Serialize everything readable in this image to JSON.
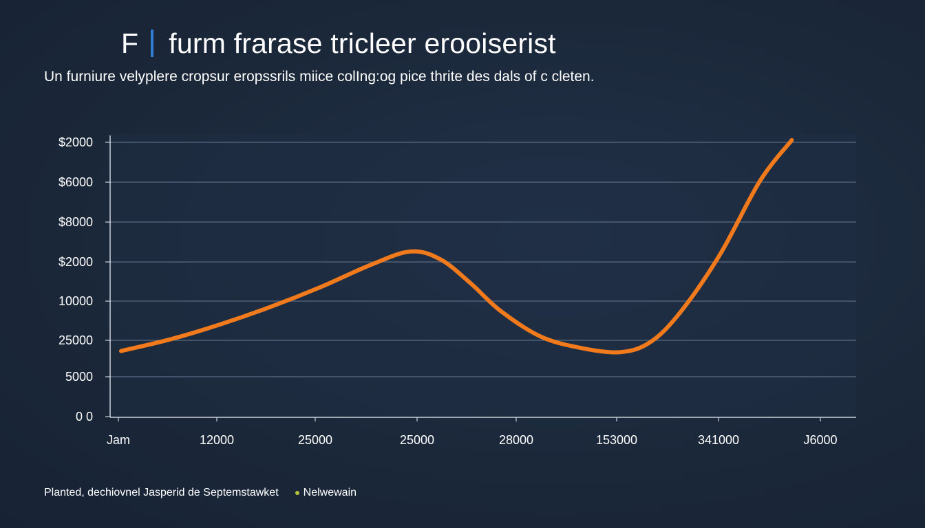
{
  "header": {
    "mark": "F",
    "title": "furm frarase tricleer erooiserist",
    "subtitle": "Un furniure velyplere cropsur eropssrils miice colIng:​og pice thrite des dals of c cleten."
  },
  "footer": {
    "note": "Planted, dechiovnel Jasperid de Septemstawket",
    "legend_label": "Nelwewain"
  },
  "colors": {
    "background": "#1b283a",
    "plot_background": "#1f2e44",
    "line": "#f07a1c",
    "grid": "#5a6b82",
    "accent_divider": "#2f7fd6",
    "legend_dot": "#b5c43a"
  },
  "chart_data": {
    "type": "line",
    "title": "furm frarase tricleer erooiserist",
    "xlabel": "",
    "ylabel": "",
    "x_tick_labels": [
      "Jam",
      "12000",
      "25000",
      "25000",
      "28000",
      "153000",
      "341000",
      "Ј6000"
    ],
    "y_tick_labels": [
      "$2000",
      "$6000",
      "$8000",
      "$2000",
      "10000",
      "25000",
      "5000",
      "0 0"
    ],
    "ylim": [
      0,
      7
    ],
    "grid": true,
    "legend": "bottom-left",
    "series": [
      {
        "name": "Nelwewain",
        "points": [
          [
            0,
            1.68
          ],
          [
            0.5,
            1.98
          ],
          [
            1,
            2.36
          ],
          [
            1.5,
            2.8
          ],
          [
            2,
            3.3
          ],
          [
            2.5,
            3.86
          ],
          [
            2.9,
            4.2
          ],
          [
            3.2,
            4.0
          ],
          [
            3.5,
            3.4
          ],
          [
            3.8,
            2.7
          ],
          [
            4.2,
            2.05
          ],
          [
            4.6,
            1.76
          ],
          [
            5.0,
            1.65
          ],
          [
            5.3,
            1.9
          ],
          [
            5.6,
            2.65
          ],
          [
            6.0,
            4.12
          ],
          [
            6.4,
            5.98
          ],
          [
            6.72,
            7.02
          ]
        ]
      }
    ]
  }
}
